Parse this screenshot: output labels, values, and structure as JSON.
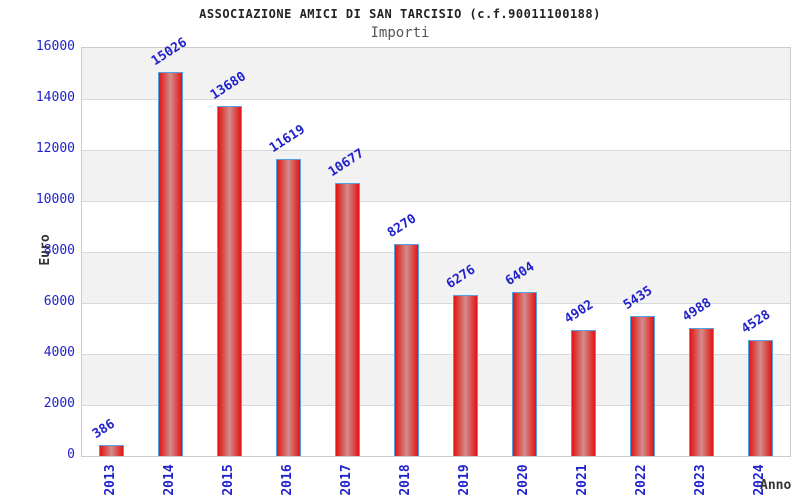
{
  "title": "ASSOCIAZIONE AMICI DI SAN TARCISIO (c.f.90011100188)",
  "subtitle": "Importi",
  "chart_data": {
    "type": "bar",
    "categories": [
      "2013",
      "2014",
      "2015",
      "2016",
      "2017",
      "2018",
      "2019",
      "2020",
      "2021",
      "2022",
      "2023",
      "2024"
    ],
    "values": [
      386,
      15026,
      13680,
      11619,
      10677,
      8270,
      6276,
      6404,
      4902,
      5435,
      4988,
      4528
    ],
    "data_labels": [
      "386",
      "15026",
      "13680",
      "11619",
      "10677",
      "8270",
      "6276",
      "6404",
      "4902",
      "5435",
      "4988",
      "4528"
    ],
    "title": "ASSOCIAZIONE AMICI DI SAN TARCISIO (c.f.90011100188)",
    "subtitle": "Importi",
    "xlabel": "Anno",
    "ylabel": "Euro",
    "ylim": [
      0,
      16000
    ],
    "ytick_step": 2000,
    "yticks": [
      0,
      2000,
      4000,
      6000,
      8000,
      10000,
      12000,
      14000,
      16000
    ],
    "grid": true,
    "legend": "none"
  },
  "colors": {
    "axis_text": "#2222cc",
    "title_color": "#222222",
    "subtitle_color": "#555555",
    "axis_title_color": "#333333",
    "band_gray": "#f2f2f2",
    "band_white": "#ffffff",
    "grid_line": "#d9d9d9",
    "plot_border": "#cccccc",
    "bar_edge": "#e31414",
    "bar_center": "#d18c8c",
    "bar_border": "#55a0e0"
  }
}
